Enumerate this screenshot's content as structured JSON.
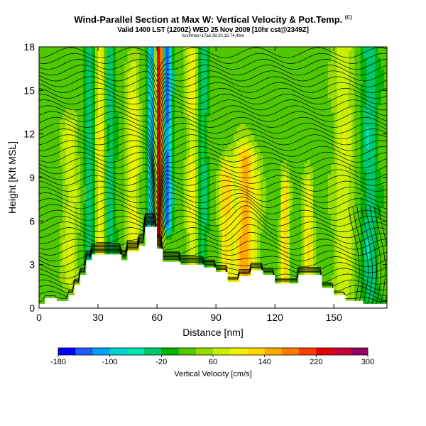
{
  "header": {
    "title": "Wind-Parallel Section at Max W: Vertical Velocity & Pot.Temp.",
    "title_mark": "(C)",
    "subtitle": "Valid 1400 LST (1200Z) WED 25 Nov 2009 [10hr cst@2349Z]",
    "info": "hcst/max=17ab 38.20,18.74,4bm"
  },
  "chart_data": {
    "type": "heatmap",
    "xlabel": "Distance [nm]",
    "ylabel": "Height [Kft MSL]",
    "xlim": [
      0,
      177
    ],
    "ylim": [
      0,
      18
    ],
    "xticks": [
      0,
      30,
      60,
      90,
      120,
      150
    ],
    "yticks": [
      0,
      3,
      6,
      9,
      12,
      15,
      18
    ],
    "colorbar": {
      "label": "Vertical Velocity [cm/s]",
      "min": -180,
      "max": 300,
      "ticks": [
        -180,
        -100,
        -20,
        60,
        140,
        220,
        300
      ],
      "colors": [
        "#0000ff",
        "#1e5aff",
        "#00a0ff",
        "#00d2d2",
        "#00e6b4",
        "#00c86e",
        "#00b400",
        "#50c800",
        "#96dc00",
        "#c8f000",
        "#f0f000",
        "#ffd700",
        "#ffaa00",
        "#ff7800",
        "#ff3c00",
        "#e60000",
        "#c80032",
        "#960064"
      ]
    },
    "terrain_kft": [
      [
        0,
        0.3
      ],
      [
        3,
        0.3
      ],
      [
        3,
        0.7
      ],
      [
        9,
        0.7
      ],
      [
        9,
        0.5
      ],
      [
        15,
        0.5
      ],
      [
        15,
        0.9
      ],
      [
        18,
        0.9
      ],
      [
        18,
        1.6
      ],
      [
        21,
        1.6
      ],
      [
        21,
        2.3
      ],
      [
        24,
        2.3
      ],
      [
        24,
        3.3
      ],
      [
        27,
        3.3
      ],
      [
        27,
        3.7
      ],
      [
        42,
        3.7
      ],
      [
        42,
        3.3
      ],
      [
        45,
        3.3
      ],
      [
        45,
        3.9
      ],
      [
        51,
        3.9
      ],
      [
        51,
        4.3
      ],
      [
        54,
        4.3
      ],
      [
        54,
        5.6
      ],
      [
        60,
        5.6
      ],
      [
        60,
        4.1
      ],
      [
        63,
        4.1
      ],
      [
        63,
        3.2
      ],
      [
        72,
        3.2
      ],
      [
        72,
        3.0
      ],
      [
        84,
        3.0
      ],
      [
        84,
        2.8
      ],
      [
        90,
        2.8
      ],
      [
        90,
        2.5
      ],
      [
        96,
        2.5
      ],
      [
        96,
        1.8
      ],
      [
        102,
        1.8
      ],
      [
        102,
        2.2
      ],
      [
        108,
        2.2
      ],
      [
        108,
        2.6
      ],
      [
        114,
        2.6
      ],
      [
        114,
        2.3
      ],
      [
        120,
        2.3
      ],
      [
        120,
        1.7
      ],
      [
        132,
        1.7
      ],
      [
        132,
        2.3
      ],
      [
        144,
        2.3
      ],
      [
        144,
        1.4
      ],
      [
        150,
        1.4
      ],
      [
        150,
        0.9
      ],
      [
        156,
        0.9
      ],
      [
        156,
        0.5
      ],
      [
        165,
        0.5
      ],
      [
        165,
        0.3
      ],
      [
        177,
        0.3
      ]
    ],
    "vertical_velocity_features": [
      {
        "x": 61,
        "width": 2.5,
        "value": 300,
        "zmin": 5.5,
        "zmax": 18
      },
      {
        "x": 58,
        "width": 2.5,
        "value": -160,
        "zmin": 6,
        "zmax": 18
      },
      {
        "x": 65,
        "width": 2.5,
        "value": -150,
        "zmin": 6,
        "zmax": 18
      },
      {
        "x": 105,
        "width": 6,
        "value": 150,
        "zmin": 2,
        "zmax": 10
      },
      {
        "x": 95,
        "width": 3,
        "value": 120,
        "zmin": 2,
        "zmax": 9
      },
      {
        "x": 125,
        "width": 2,
        "value": 130,
        "zmin": 2,
        "zmax": 8
      },
      {
        "x": 137,
        "width": 2.5,
        "value": 110,
        "zmin": 2,
        "zmax": 8
      },
      {
        "x": 78,
        "width": 3,
        "value": 100,
        "zmin": 3,
        "zmax": 18
      },
      {
        "x": 83,
        "width": 3,
        "value": -40,
        "zmin": 3,
        "zmax": 18
      },
      {
        "x": 31,
        "width": 2.5,
        "value": 110,
        "zmin": 4,
        "zmax": 18
      },
      {
        "x": 36,
        "width": 3,
        "value": -30,
        "zmin": 4,
        "zmax": 18
      },
      {
        "x": 48,
        "width": 3,
        "value": 100,
        "zmin": 4,
        "zmax": 16
      },
      {
        "x": 26,
        "width": 3,
        "value": -40,
        "zmin": 4,
        "zmax": 18
      },
      {
        "x": 16,
        "width": 4,
        "value": 80,
        "zmin": 2,
        "zmax": 12
      },
      {
        "x": 155,
        "width": 5,
        "value": 80,
        "zmin": 1,
        "zmax": 18
      },
      {
        "x": 168,
        "width": 4,
        "value": -40,
        "zmin": 1,
        "zmax": 18
      }
    ]
  }
}
